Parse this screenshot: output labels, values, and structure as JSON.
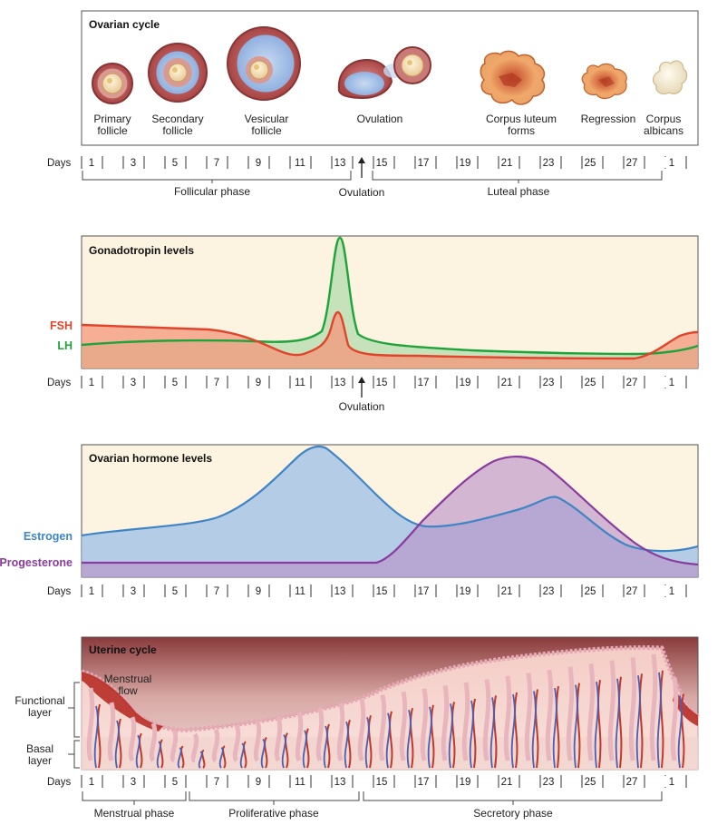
{
  "ovarian_cycle": {
    "title": "Ovarian cycle",
    "stages": [
      {
        "l1": "Primary",
        "l2": "follicle"
      },
      {
        "l1": "Secondary",
        "l2": "follicle"
      },
      {
        "l1": "Vesicular",
        "l2": "follicle"
      },
      {
        "l1": "Ovulation",
        "l2": ""
      },
      {
        "l1": "Corpus luteum",
        "l2": "forms"
      },
      {
        "l1": "Regression",
        "l2": ""
      },
      {
        "l1": "Corpus",
        "l2": "albicans"
      }
    ],
    "phases": [
      "Follicular phase",
      "Luteal phase"
    ],
    "ovulation_label": "Ovulation"
  },
  "gonadotropin": {
    "title": "Gonadotropin levels",
    "fsh_label": "FSH",
    "lh_label": "LH",
    "ovulation_label": "Ovulation"
  },
  "ovarian_hormones": {
    "title": "Ovarian hormone levels",
    "estrogen_label": "Estrogen",
    "progesterone_label": "Progesterone"
  },
  "uterine_cycle": {
    "title": "Uterine cycle",
    "menstrual_flow_l1": "Menstrual",
    "menstrual_flow_l2": "flow",
    "functional_l1": "Functional",
    "functional_l2": "layer",
    "basal_l1": "Basal",
    "basal_l2": "layer",
    "phases": [
      "Menstrual phase",
      "Proliferative phase",
      "Secretory phase"
    ]
  },
  "days_label": "Days",
  "day_ticks": [
    "1",
    "3",
    "5",
    "7",
    "9",
    "11",
    "13",
    "15",
    "17",
    "19",
    "21",
    "23",
    "25",
    "27",
    "1"
  ],
  "colors": {
    "fsh": "#e2432b",
    "lh": "#1fa33b",
    "estrogen": "#3f85c6",
    "progesterone": "#8a3b9e",
    "panel_bg": "#fcf3e0"
  }
}
